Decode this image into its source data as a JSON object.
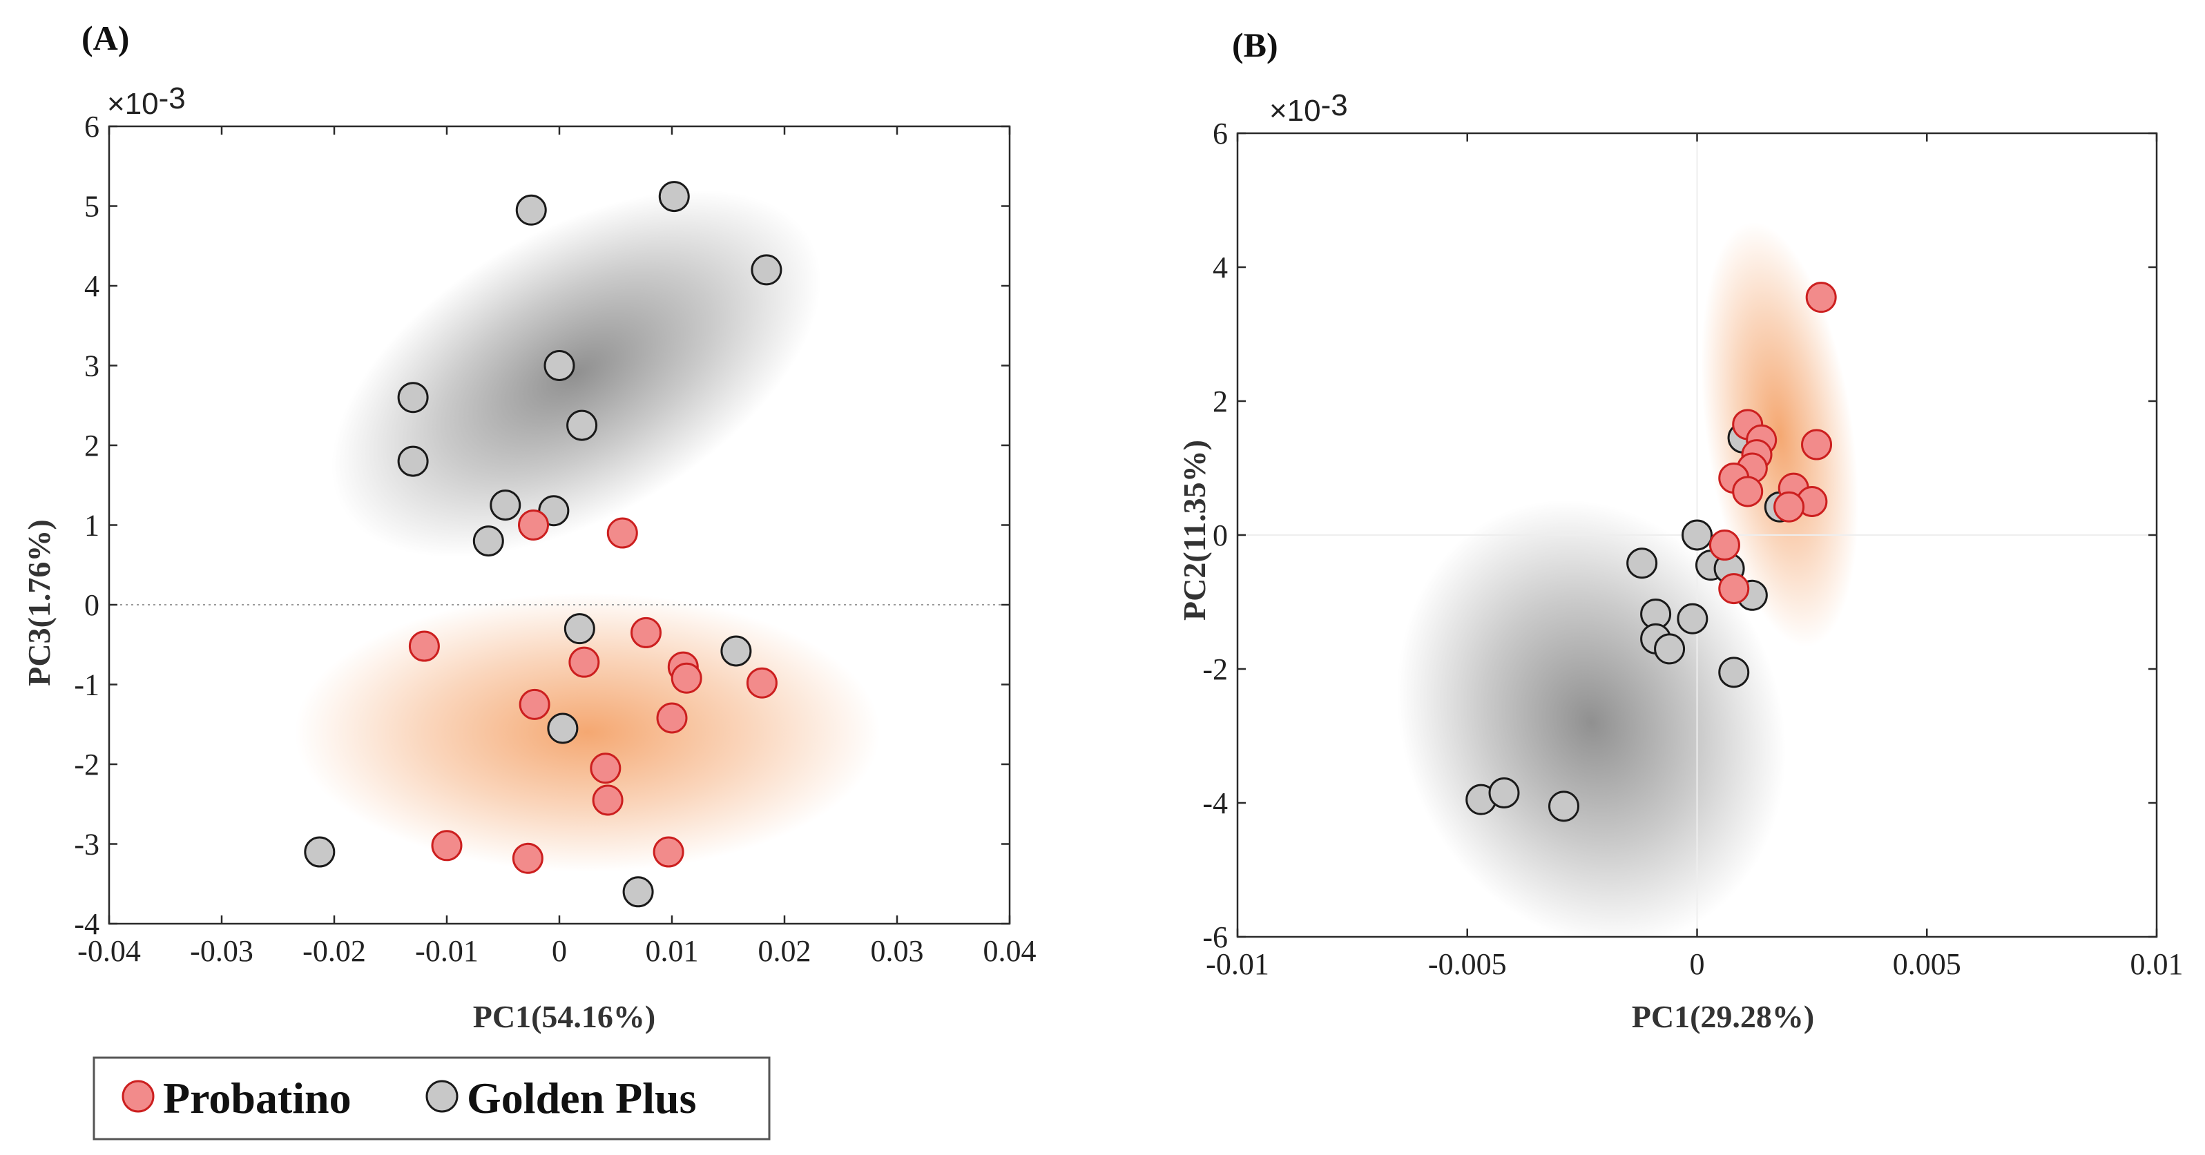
{
  "legend": {
    "items": [
      {
        "label": "Probatino",
        "fill": "#f28b8b",
        "stroke": "#cc1f1f"
      },
      {
        "label": "Golden Plus",
        "fill": "#c8c8c8",
        "stroke": "#1a1a1a"
      }
    ]
  },
  "chart_data": [
    {
      "type": "scatter",
      "panel": "(A)",
      "xlabel": "PC1(54.16%)",
      "ylabel": "PC3(1.76%)",
      "y_exponent": "×10-3",
      "xlim": [
        -0.04,
        0.04
      ],
      "ylim": [
        -4,
        6
      ],
      "x_ticks": [
        -0.04,
        -0.03,
        -0.02,
        -0.01,
        0,
        0.01,
        0.02,
        0.03,
        0.04
      ],
      "x_tick_labels": [
        "-0.04",
        "-0.03",
        "-0.02",
        "-0.01",
        "0",
        "0.01",
        "0.02",
        "0.03",
        "0.04"
      ],
      "y_ticks": [
        -4,
        -3,
        -2,
        -1,
        0,
        1,
        2,
        3,
        4,
        5,
        6
      ],
      "y_tick_labels": [
        "-4",
        "-3",
        "-2",
        "-1",
        "0",
        "1",
        "2",
        "3",
        "4",
        "5",
        "6"
      ],
      "zero_line": "y",
      "confidence_ellipses": [
        {
          "series": "Golden Plus",
          "color": "#8a8a8a",
          "center": [
            0.0015,
            2.9
          ],
          "rx": 0.024,
          "ry": 1.8,
          "angle_deg": 30
        },
        {
          "series": "Probatino",
          "color": "#f4a36a",
          "center": [
            0.0025,
            -1.6
          ],
          "rx": 0.026,
          "ry": 1.75,
          "angle_deg": 0
        }
      ],
      "series": [
        {
          "name": "Golden Plus",
          "x": [
            -0.0025,
            0.0102,
            0.0184,
            0.0,
            -0.013,
            0.002,
            -0.013,
            -0.0048,
            -0.0005,
            -0.0063,
            0.0018,
            0.0157,
            0.0003,
            -0.0213,
            0.007
          ],
          "y": [
            4.95,
            5.12,
            4.2,
            3.0,
            2.6,
            2.25,
            1.8,
            1.25,
            1.18,
            0.8,
            -0.3,
            -0.58,
            -1.55,
            -3.1,
            -3.6
          ]
        },
        {
          "name": "Probatino",
          "x": [
            -0.0023,
            0.0056,
            -0.012,
            0.0077,
            0.0022,
            0.011,
            0.0113,
            -0.0022,
            0.018,
            0.01,
            0.0041,
            0.0043,
            -0.01,
            -0.0028,
            0.0097
          ],
          "y": [
            1.0,
            0.9,
            -0.52,
            -0.35,
            -0.72,
            -0.78,
            -0.92,
            -1.25,
            -0.98,
            -1.42,
            -2.05,
            -2.45,
            -3.02,
            -3.18,
            -3.1
          ]
        }
      ]
    },
    {
      "type": "scatter",
      "panel": "(B)",
      "xlabel": "PC1(29.28%)",
      "ylabel": "PC2(11.35%)",
      "y_exponent": "×10-3",
      "xlim": [
        -0.01,
        0.01
      ],
      "ylim": [
        -6,
        6
      ],
      "x_ticks": [
        -0.01,
        -0.005,
        0,
        0.005,
        0.01
      ],
      "x_tick_labels": [
        "-0.01",
        "-0.005",
        "0",
        "0.005",
        "0.01"
      ],
      "y_ticks": [
        -6,
        -4,
        -2,
        0,
        2,
        4,
        6
      ],
      "y_tick_labels": [
        "-6",
        "-4",
        "-2",
        "0",
        "2",
        "4",
        "6"
      ],
      "zero_line": "both",
      "confidence_ellipses": [
        {
          "series": "Golden Plus",
          "color": "#8a8a8a",
          "center": [
            -0.0023,
            -2.8
          ],
          "rx": 0.0041,
          "ry": 3.4,
          "angle_deg": 22
        },
        {
          "series": "Probatino",
          "color": "#f4a36a",
          "center": [
            0.0018,
            1.5
          ],
          "rx": 0.0016,
          "ry": 3.2,
          "angle_deg": 8
        }
      ],
      "series": [
        {
          "name": "Golden Plus",
          "x": [
            0.001,
            0.0018,
            0.0,
            -0.0012,
            0.0003,
            0.0007,
            0.0012,
            -0.0009,
            -0.0001,
            -0.0009,
            -0.0006,
            0.0008,
            -0.0047,
            -0.0042,
            -0.0029
          ],
          "y": [
            1.45,
            0.42,
            0.0,
            -0.42,
            -0.45,
            -0.5,
            -0.9,
            -1.18,
            -1.25,
            -1.55,
            -1.7,
            -2.05,
            -3.95,
            -3.85,
            -4.05
          ]
        },
        {
          "name": "Probatino",
          "x": [
            0.0027,
            0.0011,
            0.0014,
            0.0026,
            0.0013,
            0.0012,
            0.0008,
            0.0011,
            0.0021,
            0.0025,
            0.002,
            0.0006,
            0.0008
          ],
          "y": [
            3.55,
            1.65,
            1.42,
            1.35,
            1.2,
            1.0,
            0.85,
            0.65,
            0.7,
            0.5,
            0.42,
            -0.15,
            -0.8
          ]
        }
      ]
    }
  ]
}
